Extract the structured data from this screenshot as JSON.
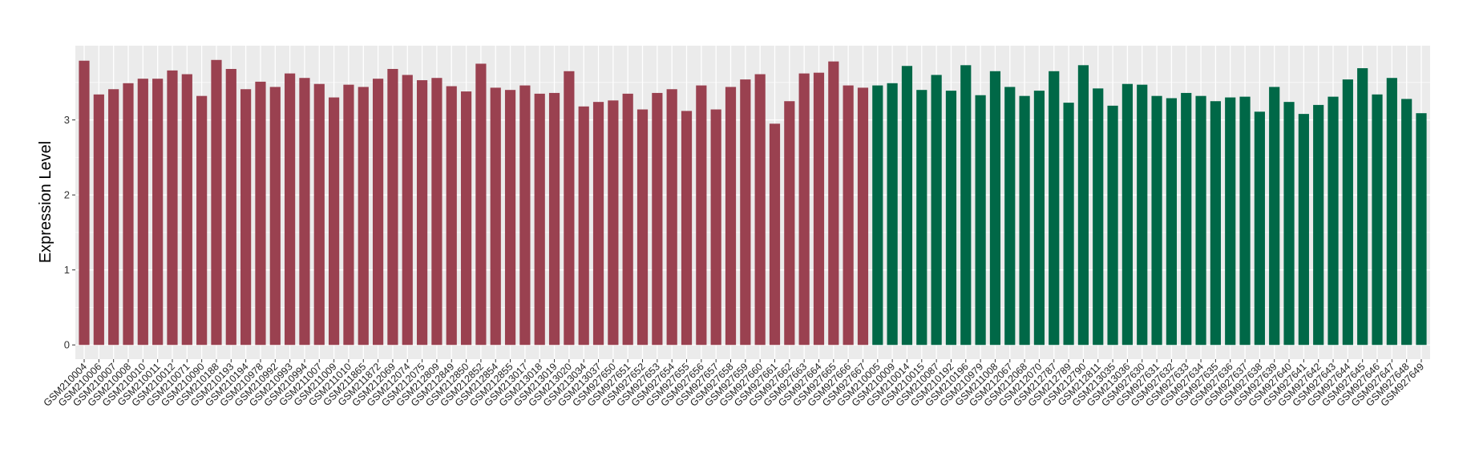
{
  "chart_data": {
    "type": "bar",
    "title": "",
    "xlabel": "",
    "ylabel": "Expression Level",
    "ylim": [
      -0.19,
      3.99
    ],
    "yticks": [
      0,
      1,
      2,
      3
    ],
    "grid": true,
    "legend": "none",
    "colors": {
      "group1": "#9A4150",
      "group2": "#006847",
      "panel": "#EBEBEB",
      "grid": "#FFFFFF"
    },
    "categories": [
      "GSM210004",
      "GSM210006",
      "GSM210007",
      "GSM210008",
      "GSM210010",
      "GSM210011",
      "GSM210012",
      "GSM210071",
      "GSM210090",
      "GSM210188",
      "GSM210193",
      "GSM210194",
      "GSM210978",
      "GSM210992",
      "GSM210993",
      "GSM210994",
      "GSM211007",
      "GSM211009",
      "GSM211010",
      "GSM211865",
      "GSM211872",
      "GSM212069",
      "GSM212074",
      "GSM212075",
      "GSM212809",
      "GSM212849",
      "GSM212850",
      "GSM212852",
      "GSM212854",
      "GSM212855",
      "GSM213017",
      "GSM213018",
      "GSM213019",
      "GSM213020",
      "GSM213034",
      "GSM213037",
      "GSM927650",
      "GSM927651",
      "GSM927652",
      "GSM927653",
      "GSM927654",
      "GSM927655",
      "GSM927656",
      "GSM927657",
      "GSM927658",
      "GSM927659",
      "GSM927660",
      "GSM927661",
      "GSM927662",
      "GSM927663",
      "GSM927664",
      "GSM927665",
      "GSM927666",
      "GSM927667",
      "GSM210005",
      "GSM210009",
      "GSM210014",
      "GSM210015",
      "GSM210087",
      "GSM210192",
      "GSM210196",
      "GSM210979",
      "GSM211008",
      "GSM212067",
      "GSM212068",
      "GSM212070",
      "GSM212787",
      "GSM212789",
      "GSM212790",
      "GSM212811",
      "GSM213035",
      "GSM213036",
      "GSM927630",
      "GSM927631",
      "GSM927632",
      "GSM927633",
      "GSM927634",
      "GSM927635",
      "GSM927636",
      "GSM927637",
      "GSM927638",
      "GSM927639",
      "GSM927640",
      "GSM927641",
      "GSM927642",
      "GSM927643",
      "GSM927644",
      "GSM927645",
      "GSM927646",
      "GSM927647",
      "GSM927648",
      "GSM927649"
    ],
    "values": [
      3.79,
      3.34,
      3.41,
      3.49,
      3.55,
      3.55,
      3.66,
      3.61,
      3.32,
      3.8,
      3.68,
      3.41,
      3.51,
      3.44,
      3.62,
      3.56,
      3.48,
      3.3,
      3.47,
      3.44,
      3.55,
      3.68,
      3.6,
      3.53,
      3.56,
      3.45,
      3.38,
      3.75,
      3.43,
      3.4,
      3.46,
      3.35,
      3.36,
      3.65,
      3.18,
      3.24,
      3.26,
      3.35,
      3.14,
      3.36,
      3.41,
      3.12,
      3.46,
      3.14,
      3.44,
      3.54,
      3.61,
      2.95,
      3.25,
      3.62,
      3.63,
      3.78,
      3.46,
      3.43,
      3.46,
      3.49,
      3.72,
      3.4,
      3.6,
      3.39,
      3.73,
      3.33,
      3.65,
      3.44,
      3.32,
      3.39,
      3.65,
      3.23,
      3.73,
      3.42,
      3.19,
      3.48,
      3.47,
      3.32,
      3.29,
      3.36,
      3.32,
      3.25,
      3.3,
      3.31,
      3.11,
      3.44,
      3.24,
      3.08,
      3.2,
      3.31,
      3.54,
      3.69,
      3.34,
      3.56,
      3.28,
      3.09
    ],
    "groups": [
      "group1",
      "group1",
      "group1",
      "group1",
      "group1",
      "group1",
      "group1",
      "group1",
      "group1",
      "group1",
      "group1",
      "group1",
      "group1",
      "group1",
      "group1",
      "group1",
      "group1",
      "group1",
      "group1",
      "group1",
      "group1",
      "group1",
      "group1",
      "group1",
      "group1",
      "group1",
      "group1",
      "group1",
      "group1",
      "group1",
      "group1",
      "group1",
      "group1",
      "group1",
      "group1",
      "group1",
      "group1",
      "group1",
      "group1",
      "group1",
      "group1",
      "group1",
      "group1",
      "group1",
      "group1",
      "group1",
      "group1",
      "group1",
      "group1",
      "group1",
      "group1",
      "group1",
      "group1",
      "group1",
      "group2",
      "group2",
      "group2",
      "group2",
      "group2",
      "group2",
      "group2",
      "group2",
      "group2",
      "group2",
      "group2",
      "group2",
      "group2",
      "group2",
      "group2",
      "group2",
      "group2",
      "group2",
      "group2",
      "group2",
      "group2",
      "group2",
      "group2",
      "group2",
      "group2",
      "group2",
      "group2",
      "group2",
      "group2",
      "group2",
      "group2",
      "group2",
      "group2",
      "group2",
      "group2",
      "group2",
      "group2",
      "group2"
    ]
  }
}
